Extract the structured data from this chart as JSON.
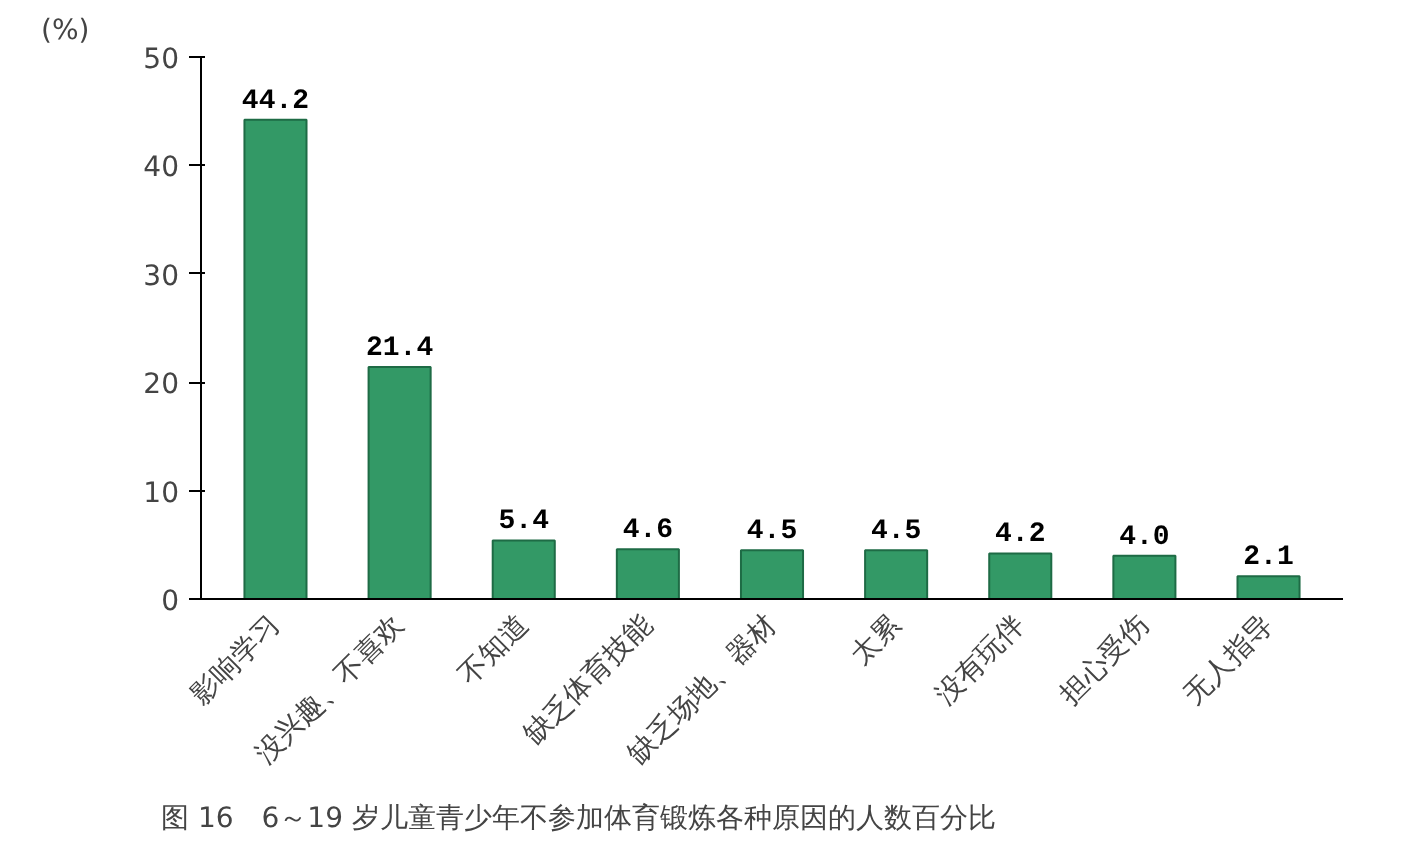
{
  "chart_data": {
    "type": "bar",
    "title": "图 16　6～19 岁儿童青少年不参加体育锻炼各种原因的人数百分比",
    "ylabel": "(%)",
    "categories": [
      "影响学习",
      "没兴趣、不喜欢",
      "不知道",
      "缺乏体育技能",
      "缺乏场地、器材",
      "太累",
      "没有玩伴",
      "担心受伤",
      "无人指导"
    ],
    "values": [
      44.2,
      21.4,
      5.4,
      4.6,
      4.5,
      4.5,
      4.2,
      4.0,
      2.1
    ],
    "value_labels": [
      "44.2",
      "21.4",
      "5.4",
      "4.6",
      "4.5",
      "4.5",
      "4.2",
      "4.0",
      "2.1"
    ],
    "color": "#339966",
    "ylim": [
      0,
      50
    ],
    "yticks": [
      0,
      10,
      20,
      30,
      40,
      50
    ],
    "grid": false
  }
}
